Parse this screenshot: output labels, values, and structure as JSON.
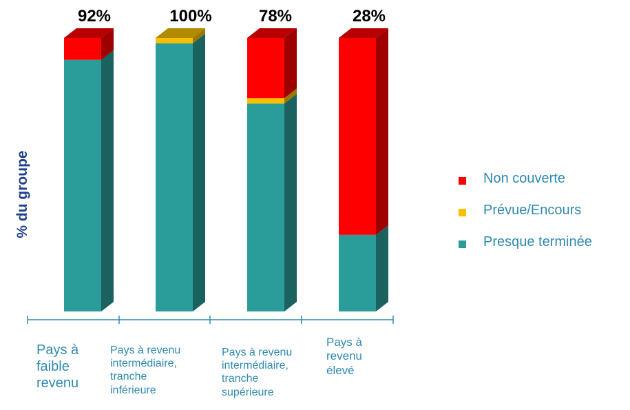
{
  "chart_data": {
    "type": "bar",
    "stacked": true,
    "three_d": true,
    "ylabel": "% du groupe",
    "ylim": [
      0,
      100
    ],
    "categories": [
      [
        "Pays à",
        "faible",
        "revenu"
      ],
      [
        "Pays à revenu",
        "intermédiaire,",
        "tranche",
        "inférieure"
      ],
      [
        "Pays à revenu",
        "intermédiaire,",
        "tranche",
        "supérieure"
      ],
      [
        "Pays à",
        "revenu",
        "élevé"
      ]
    ],
    "top_labels": [
      "92%",
      "100%",
      "78%",
      "28%"
    ],
    "series": [
      {
        "name": "Presque terminée",
        "color": "#2a9d9b",
        "values": [
          92,
          98,
          76,
          28
        ]
      },
      {
        "name": "Prévue/Encours",
        "color": "#f6c000",
        "values": [
          0,
          2,
          2,
          0
        ]
      },
      {
        "name": "Non couverte",
        "color": "#ff0000",
        "values": [
          8,
          0,
          22,
          72
        ]
      }
    ],
    "legend_position": "right",
    "legend_order": [
      "Non couverte",
      "Prévue/Encours",
      "Presque terminée"
    ],
    "grid": false
  }
}
